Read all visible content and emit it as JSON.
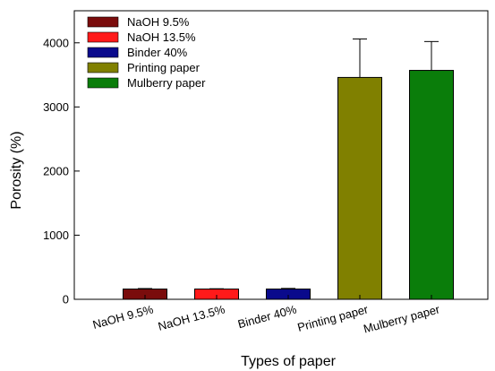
{
  "chart_data": {
    "type": "bar",
    "title": "",
    "xlabel": "Types of paper",
    "ylabel": "Porosity (%)",
    "categories": [
      "NaOH 9.5%",
      "NaOH 13.5%",
      "Binder 40%",
      "Printing paper",
      "Mulberry paper"
    ],
    "values": [
      160,
      160,
      160,
      3460,
      3570
    ],
    "errors": [
      8,
      5,
      10,
      600,
      450
    ],
    "colors": [
      "#7a0c0c",
      "#ff1a1a",
      "#0a0a8c",
      "#808000",
      "#0a7d0a"
    ],
    "ylim": [
      0,
      4500
    ],
    "yticks": [
      0,
      1000,
      2000,
      3000,
      4000
    ],
    "grid": false,
    "legend": {
      "placement": "top-left",
      "entries": [
        "NaOH 9.5%",
        "NaOH 13.5%",
        "Binder 40%",
        "Printing paper",
        "Mulberry paper"
      ]
    }
  }
}
